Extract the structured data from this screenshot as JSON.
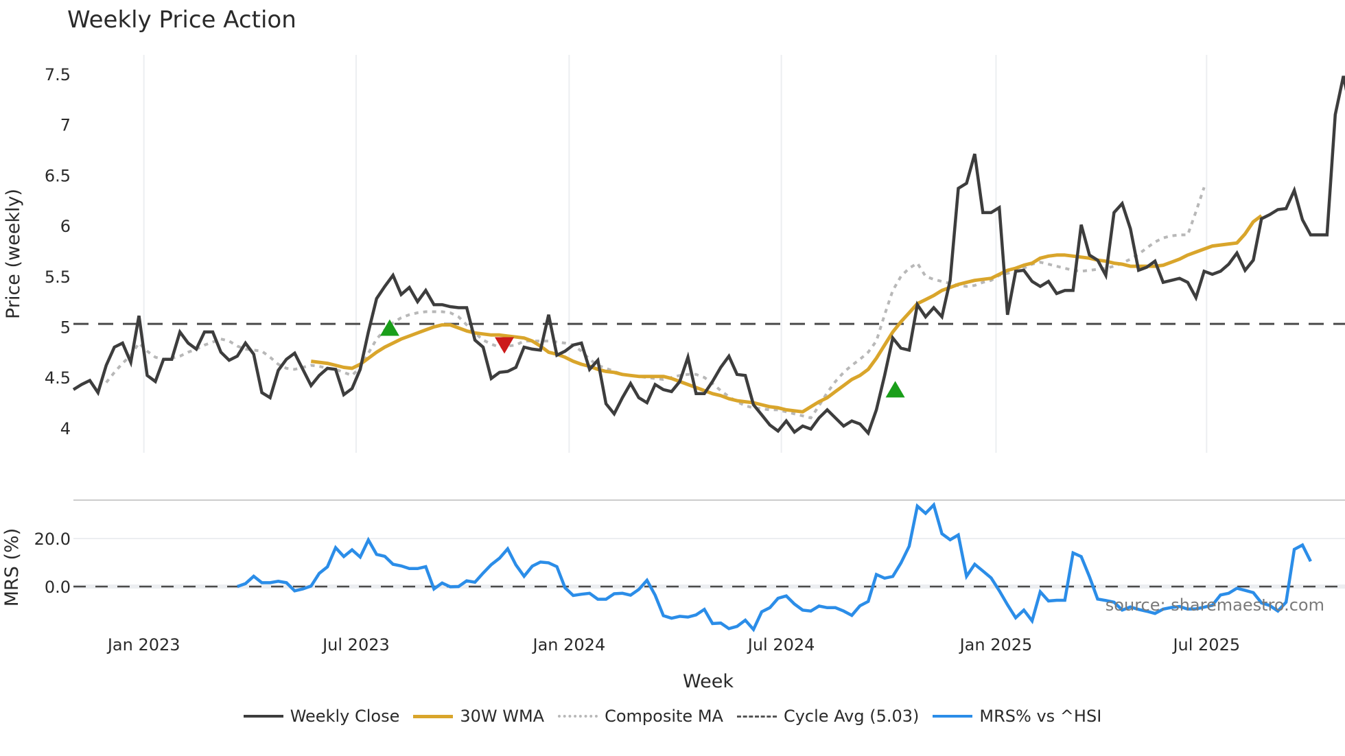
{
  "chart_data": {
    "type": "line",
    "title": "Weekly Price Action",
    "xlabel": "Week",
    "panels": [
      {
        "name": "price",
        "ylabel": "Price (weekly)",
        "ylim": [
          3.8,
          7.65
        ],
        "yticks": [
          "4",
          "4.5",
          "5",
          "5.5",
          "6",
          "6.5",
          "7",
          "7.5"
        ],
        "reference_line": {
          "name": "Cycle Avg (5.03)",
          "value": 5.03
        }
      },
      {
        "name": "mrs",
        "ylabel": "MRS (%)",
        "ylim": [
          -18,
          38
        ],
        "yticks": [
          "0.0",
          "20.0"
        ],
        "reference_line": {
          "name": "zero",
          "value": 0
        }
      }
    ],
    "xticks": [
      "Jan 2023",
      "Jul 2023",
      "Jan 2024",
      "Jul 2024",
      "Jan 2025",
      "Jul 2025"
    ],
    "xtick_week_index": [
      8.6,
      34.5,
      60.5,
      86.4,
      112.6,
      138.3
    ],
    "grid": true,
    "legend_position": "bottom",
    "series": [
      {
        "name": "Weekly Close",
        "color": "#3d3d3d",
        "start_index": 0,
        "values": [
          4.38,
          4.43,
          4.47,
          4.35,
          4.62,
          4.8,
          4.84,
          4.65,
          5.11,
          4.52,
          4.46,
          4.68,
          4.68,
          4.95,
          4.84,
          4.78,
          4.95,
          4.95,
          4.75,
          4.67,
          4.71,
          4.84,
          4.73,
          4.35,
          4.3,
          4.57,
          4.68,
          4.74,
          4.58,
          4.42,
          4.52,
          4.59,
          4.58,
          4.33,
          4.39,
          4.58,
          4.95,
          5.28,
          5.4,
          5.51,
          5.32,
          5.39,
          5.25,
          5.36,
          5.22,
          5.22,
          5.2,
          5.19,
          5.19,
          4.87,
          4.8,
          4.49,
          4.55,
          4.56,
          4.6,
          4.8,
          4.78,
          4.77,
          5.12,
          4.72,
          4.76,
          4.82,
          4.84,
          4.58,
          4.67,
          4.24,
          4.14,
          4.3,
          4.44,
          4.3,
          4.25,
          4.43,
          4.38,
          4.36,
          4.46,
          4.7,
          4.34,
          4.34,
          4.46,
          4.6,
          4.71,
          4.53,
          4.52,
          4.23,
          4.13,
          4.03,
          3.97,
          4.07,
          3.96,
          4.02,
          3.99,
          4.1,
          4.18,
          4.1,
          4.02,
          4.07,
          4.04,
          3.95,
          4.18,
          4.52,
          4.89,
          4.79,
          4.77,
          5.22,
          5.1,
          5.19,
          5.1,
          5.46,
          6.37,
          6.42,
          6.71,
          6.13,
          6.13,
          6.18,
          5.12,
          5.55,
          5.56,
          5.45,
          5.4,
          5.45,
          5.33,
          5.36,
          5.36,
          6.01,
          5.71,
          5.66,
          5.51,
          6.13,
          6.22,
          5.97,
          5.56,
          5.59,
          5.65,
          5.44,
          5.46,
          5.48,
          5.44,
          5.29,
          5.55,
          5.52,
          5.55,
          5.62,
          5.73,
          5.56,
          5.66,
          6.07,
          6.11,
          6.16,
          6.17,
          6.35,
          6.06,
          5.91,
          5.91,
          5.91,
          7.1,
          7.48,
          7.1
        ]
      },
      {
        "name": "30W WMA",
        "color": "#d9a52b",
        "start_index": 29,
        "values": [
          4.66,
          4.65,
          4.64,
          4.62,
          4.6,
          4.59,
          4.63,
          4.69,
          4.75,
          4.8,
          4.84,
          4.88,
          4.91,
          4.94,
          4.97,
          5.0,
          5.02,
          5.02,
          4.99,
          4.96,
          4.94,
          4.93,
          4.92,
          4.92,
          4.91,
          4.9,
          4.89,
          4.86,
          4.81,
          4.75,
          4.73,
          4.7,
          4.66,
          4.63,
          4.61,
          4.58,
          4.56,
          4.55,
          4.53,
          4.52,
          4.51,
          4.51,
          4.51,
          4.51,
          4.49,
          4.46,
          4.43,
          4.4,
          4.37,
          4.34,
          4.32,
          4.29,
          4.27,
          4.26,
          4.25,
          4.23,
          4.21,
          4.2,
          4.18,
          4.17,
          4.16,
          4.21,
          4.26,
          4.3,
          4.36,
          4.42,
          4.48,
          4.52,
          4.58,
          4.69,
          4.82,
          4.95,
          5.05,
          5.14,
          5.23,
          5.27,
          5.31,
          5.36,
          5.39,
          5.42,
          5.44,
          5.46,
          5.47,
          5.48,
          5.52,
          5.56,
          5.58,
          5.61,
          5.63,
          5.68,
          5.7,
          5.71,
          5.71,
          5.7,
          5.69,
          5.68,
          5.66,
          5.65,
          5.63,
          5.62,
          5.6,
          5.6,
          5.6,
          5.6,
          5.61,
          5.64,
          5.67,
          5.71,
          5.74,
          5.77,
          5.8,
          5.81,
          5.82,
          5.83,
          5.92,
          6.04,
          6.1
        ]
      },
      {
        "name": "Composite MA",
        "color": "#b8b8b8",
        "start_index": 4,
        "values": [
          4.45,
          4.55,
          4.64,
          4.72,
          4.84,
          4.76,
          4.7,
          4.68,
          4.69,
          4.71,
          4.75,
          4.78,
          4.82,
          4.85,
          4.88,
          4.86,
          4.81,
          4.78,
          4.77,
          4.76,
          4.7,
          4.63,
          4.59,
          4.58,
          4.6,
          4.62,
          4.61,
          4.59,
          4.58,
          4.55,
          4.52,
          4.6,
          4.74,
          4.88,
          4.97,
          5.04,
          5.09,
          5.12,
          5.14,
          5.15,
          5.15,
          5.15,
          5.14,
          5.1,
          5.02,
          4.94,
          4.87,
          4.83,
          4.8,
          4.81,
          4.82,
          4.86,
          4.86,
          4.86,
          4.86,
          4.85,
          4.84,
          4.82,
          4.76,
          4.68,
          4.62,
          4.59,
          4.56,
          4.53,
          4.52,
          4.51,
          4.5,
          4.49,
          4.48,
          4.5,
          4.52,
          4.53,
          4.53,
          4.5,
          4.44,
          4.37,
          4.31,
          4.26,
          4.22,
          4.2,
          4.19,
          4.18,
          4.18,
          4.16,
          4.14,
          4.12,
          4.1,
          4.22,
          4.35,
          4.46,
          4.55,
          4.62,
          4.68,
          4.75,
          4.86,
          5.12,
          5.36,
          5.5,
          5.58,
          5.63,
          5.5,
          5.47,
          5.45,
          5.43,
          5.41,
          5.4,
          5.41,
          5.44,
          5.46,
          5.51,
          5.53,
          5.55,
          5.58,
          5.62,
          5.64,
          5.62,
          5.6,
          5.58,
          5.56,
          5.55,
          5.56,
          5.57,
          5.58,
          5.6,
          5.63,
          5.67,
          5.72,
          5.78,
          5.84,
          5.88,
          5.9,
          5.91,
          5.91,
          6.14,
          6.38
        ]
      },
      {
        "name": "MRS% vs ^HSI",
        "color": "#2b8de8",
        "panel": "mrs",
        "start_index": 20,
        "values": [
          0.0,
          1.2,
          4.3,
          1.6,
          1.6,
          2.2,
          1.6,
          -1.8,
          -1.0,
          0.2,
          5.5,
          8.2,
          16.2,
          12.5,
          15.3,
          12.3,
          19.4,
          13.4,
          12.6,
          9.3,
          8.6,
          7.5,
          7.5,
          8.3,
          -1.0,
          1.5,
          -0.1,
          0.0,
          2.4,
          1.8,
          5.6,
          9.1,
          11.8,
          15.7,
          9.0,
          4.3,
          8.5,
          10.2,
          9.9,
          8.3,
          -0.5,
          -3.7,
          -3.2,
          -2.8,
          -5.3,
          -5.3,
          -3.0,
          -2.8,
          -3.6,
          -1.2,
          2.6,
          -3.6,
          -12.1,
          -13.2,
          -12.4,
          -12.7,
          -11.8,
          -9.5,
          -15.4,
          -15.2,
          -17.5,
          -16.6,
          -14.0,
          -17.9,
          -10.5,
          -8.8,
          -4.9,
          -3.9,
          -7.3,
          -9.8,
          -10.2,
          -8.1,
          -8.8,
          -8.8,
          -10.2,
          -12.0,
          -8.0,
          -6.2,
          5.0,
          3.5,
          4.2,
          9.8,
          16.8,
          33.5,
          30.5,
          34.0,
          22.0,
          19.5,
          21.5,
          4.3,
          9.3,
          6.5,
          3.6,
          -1.7,
          -7.6,
          -13.0,
          -9.8,
          -14.3,
          -2.2,
          -6.0,
          -5.7,
          -5.7,
          14.0,
          12.5,
          4.1,
          -5.2,
          -5.8,
          -6.5,
          -9.8,
          -8.5,
          -9.5,
          -10.3,
          -11.2,
          -9.4,
          -8.7,
          -8.3,
          -9.4,
          -9.3,
          -8.6,
          -7.8,
          -3.5,
          -2.8,
          -0.7,
          -1.6,
          -2.5,
          -6.8,
          -7.9,
          -10.2,
          -6.5,
          15.5,
          17.3,
          10.5
        ]
      }
    ],
    "markers": [
      {
        "type": "buy",
        "shape": "triangle-up",
        "color": "#1a9e1a",
        "week_index": 38.6,
        "value": 4.98
      },
      {
        "type": "sell",
        "shape": "triangle-down",
        "color": "#cc1a1a",
        "week_index": 52.6,
        "value": 4.83
      },
      {
        "type": "buy",
        "shape": "triangle-up",
        "color": "#1a9e1a",
        "week_index": 100.3,
        "value": 4.37
      }
    ]
  },
  "labels": {
    "title": "Weekly Price Action",
    "ylabel_price": "Price (weekly)",
    "ylabel_mrs": "MRS (%)",
    "xlabel": "Week",
    "source": "source: sharemaestro.com"
  },
  "legend": [
    {
      "label": "Weekly Close",
      "color": "#3d3d3d",
      "style": "solid"
    },
    {
      "label": "30W WMA",
      "color": "#d9a52b",
      "style": "solid"
    },
    {
      "label": "Composite MA",
      "color": "#b8b8b8",
      "style": "dotted"
    },
    {
      "label": "Cycle Avg (5.03)",
      "color": "#555555",
      "style": "dashed"
    },
    {
      "label": "MRS% vs ^HSI",
      "color": "#2b8de8",
      "style": "solid"
    }
  ]
}
